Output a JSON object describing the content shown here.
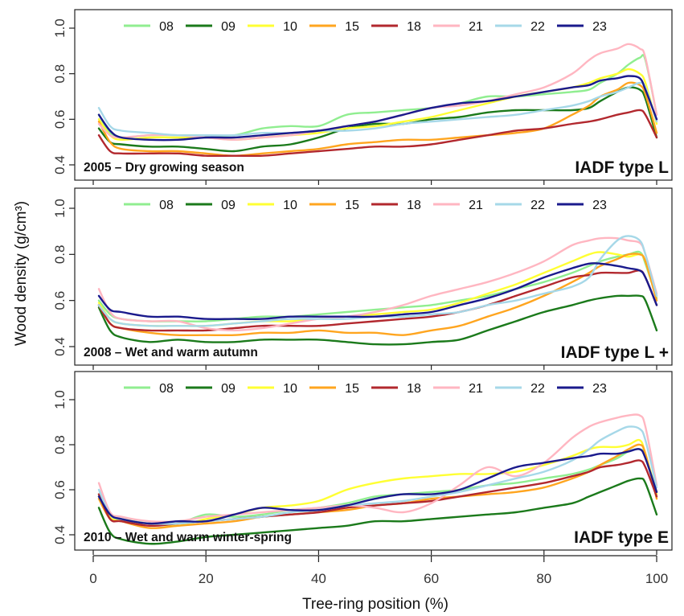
{
  "figure": {
    "ylabel": "Wood density (g/cm³)",
    "xlabel": "Tree-ring position (%)"
  },
  "chart_data": [
    {
      "type": "line",
      "panel_label": "2005 – Dry growing season",
      "type_label": "IADF type L",
      "xlim": [
        0,
        100
      ],
      "ylim": [
        0.4,
        1.0
      ],
      "yticks": [
        0.4,
        0.6,
        0.8,
        1.0
      ],
      "xticks": [
        0,
        20,
        40,
        60,
        80,
        100
      ],
      "legend_position": "top",
      "x": [
        1,
        3,
        5,
        10,
        15,
        20,
        25,
        30,
        35,
        40,
        45,
        50,
        55,
        60,
        65,
        70,
        75,
        80,
        85,
        88,
        90,
        93,
        95,
        97,
        98,
        100
      ],
      "series": [
        {
          "name": "08",
          "color": "#90ee90",
          "values": [
            0.62,
            0.54,
            0.52,
            0.53,
            0.53,
            0.53,
            0.53,
            0.56,
            0.57,
            0.57,
            0.62,
            0.63,
            0.64,
            0.65,
            0.67,
            0.7,
            0.7,
            0.71,
            0.72,
            0.73,
            0.76,
            0.8,
            0.84,
            0.87,
            0.86,
            0.62
          ]
        },
        {
          "name": "09",
          "color": "#1b7a1b",
          "values": [
            0.56,
            0.5,
            0.49,
            0.48,
            0.48,
            0.47,
            0.46,
            0.48,
            0.49,
            0.52,
            0.56,
            0.58,
            0.58,
            0.6,
            0.61,
            0.63,
            0.64,
            0.64,
            0.64,
            0.65,
            0.68,
            0.72,
            0.74,
            0.73,
            0.69,
            0.52
          ]
        },
        {
          "name": "10",
          "color": "#ffff33",
          "values": [
            0.6,
            0.53,
            0.51,
            0.52,
            0.52,
            0.52,
            0.51,
            0.52,
            0.53,
            0.54,
            0.56,
            0.57,
            0.59,
            0.61,
            0.64,
            0.67,
            0.7,
            0.72,
            0.74,
            0.76,
            0.78,
            0.8,
            0.82,
            0.8,
            0.76,
            0.58
          ]
        },
        {
          "name": "15",
          "color": "#ffa51f",
          "values": [
            0.59,
            0.5,
            0.47,
            0.46,
            0.46,
            0.45,
            0.44,
            0.45,
            0.46,
            0.47,
            0.49,
            0.5,
            0.51,
            0.51,
            0.52,
            0.53,
            0.54,
            0.56,
            0.62,
            0.66,
            0.7,
            0.73,
            0.76,
            0.75,
            0.71,
            0.54
          ]
        },
        {
          "name": "18",
          "color": "#b2282e",
          "values": [
            0.53,
            0.46,
            0.45,
            0.45,
            0.45,
            0.44,
            0.44,
            0.44,
            0.45,
            0.46,
            0.47,
            0.48,
            0.48,
            0.49,
            0.51,
            0.53,
            0.55,
            0.56,
            0.58,
            0.59,
            0.6,
            0.62,
            0.63,
            0.64,
            0.62,
            0.52
          ]
        },
        {
          "name": "21",
          "color": "#ffb6c1",
          "values": [
            0.58,
            0.53,
            0.52,
            0.53,
            0.53,
            0.52,
            0.51,
            0.52,
            0.53,
            0.55,
            0.57,
            0.59,
            0.62,
            0.65,
            0.66,
            0.68,
            0.71,
            0.74,
            0.8,
            0.86,
            0.89,
            0.91,
            0.93,
            0.91,
            0.87,
            0.62
          ]
        },
        {
          "name": "22",
          "color": "#a6d8e8",
          "values": [
            0.65,
            0.57,
            0.55,
            0.54,
            0.53,
            0.53,
            0.53,
            0.54,
            0.54,
            0.55,
            0.55,
            0.56,
            0.58,
            0.59,
            0.6,
            0.61,
            0.62,
            0.64,
            0.66,
            0.68,
            0.7,
            0.72,
            0.74,
            0.76,
            0.74,
            0.59
          ]
        },
        {
          "name": "23",
          "color": "#1a1a8c",
          "values": [
            0.62,
            0.55,
            0.52,
            0.51,
            0.51,
            0.52,
            0.52,
            0.53,
            0.54,
            0.55,
            0.57,
            0.59,
            0.62,
            0.65,
            0.67,
            0.68,
            0.7,
            0.72,
            0.74,
            0.75,
            0.77,
            0.78,
            0.79,
            0.78,
            0.73,
            0.6
          ]
        }
      ]
    },
    {
      "type": "line",
      "panel_label": "2008 – Wet and warm autumn",
      "type_label": "IADF type L +",
      "xlim": [
        0,
        100
      ],
      "ylim": [
        0.4,
        1.0
      ],
      "yticks": [
        0.4,
        0.6,
        0.8,
        1.0
      ],
      "xticks": [
        0,
        20,
        40,
        60,
        80,
        100
      ],
      "legend_position": "top",
      "x": [
        1,
        3,
        5,
        10,
        15,
        20,
        25,
        30,
        35,
        40,
        45,
        50,
        55,
        60,
        65,
        70,
        75,
        80,
        85,
        88,
        90,
        93,
        95,
        97,
        98,
        100
      ],
      "series": [
        {
          "name": "08",
          "color": "#90ee90",
          "values": [
            0.6,
            0.54,
            0.52,
            0.51,
            0.51,
            0.51,
            0.52,
            0.53,
            0.53,
            0.54,
            0.55,
            0.56,
            0.57,
            0.58,
            0.6,
            0.62,
            0.65,
            0.68,
            0.72,
            0.75,
            0.77,
            0.79,
            0.8,
            0.81,
            0.76,
            0.61
          ]
        },
        {
          "name": "09",
          "color": "#1b7a1b",
          "values": [
            0.57,
            0.47,
            0.44,
            0.42,
            0.43,
            0.42,
            0.42,
            0.43,
            0.43,
            0.43,
            0.42,
            0.41,
            0.41,
            0.42,
            0.43,
            0.47,
            0.51,
            0.55,
            0.58,
            0.6,
            0.61,
            0.62,
            0.62,
            0.62,
            0.6,
            0.47
          ]
        },
        {
          "name": "10",
          "color": "#ffff33",
          "values": [
            0.59,
            0.52,
            0.5,
            0.49,
            0.49,
            0.49,
            0.5,
            0.51,
            0.51,
            0.52,
            0.53,
            0.54,
            0.55,
            0.56,
            0.59,
            0.63,
            0.67,
            0.72,
            0.77,
            0.8,
            0.81,
            0.8,
            0.79,
            0.8,
            0.77,
            0.62
          ]
        },
        {
          "name": "15",
          "color": "#ffa51f",
          "values": [
            0.58,
            0.5,
            0.48,
            0.46,
            0.45,
            0.45,
            0.45,
            0.46,
            0.46,
            0.47,
            0.46,
            0.46,
            0.45,
            0.47,
            0.49,
            0.53,
            0.57,
            0.62,
            0.68,
            0.72,
            0.75,
            0.78,
            0.8,
            0.8,
            0.77,
            0.6
          ]
        },
        {
          "name": "18",
          "color": "#b2282e",
          "values": [
            0.58,
            0.5,
            0.48,
            0.47,
            0.47,
            0.47,
            0.48,
            0.49,
            0.49,
            0.49,
            0.5,
            0.51,
            0.52,
            0.53,
            0.55,
            0.58,
            0.62,
            0.66,
            0.7,
            0.71,
            0.72,
            0.72,
            0.72,
            0.73,
            0.7,
            0.58
          ]
        },
        {
          "name": "21",
          "color": "#ffb6c1",
          "values": [
            0.65,
            0.55,
            0.52,
            0.51,
            0.51,
            0.48,
            0.47,
            0.48,
            0.5,
            0.52,
            0.53,
            0.55,
            0.58,
            0.62,
            0.65,
            0.68,
            0.72,
            0.77,
            0.84,
            0.86,
            0.87,
            0.87,
            0.86,
            0.85,
            0.8,
            0.63
          ]
        },
        {
          "name": "22",
          "color": "#a6d8e8",
          "values": [
            0.58,
            0.52,
            0.5,
            0.49,
            0.49,
            0.49,
            0.5,
            0.51,
            0.52,
            0.52,
            0.52,
            0.53,
            0.53,
            0.54,
            0.55,
            0.58,
            0.6,
            0.63,
            0.66,
            0.7,
            0.78,
            0.86,
            0.88,
            0.86,
            0.8,
            0.62
          ]
        },
        {
          "name": "23",
          "color": "#1a1a8c",
          "values": [
            0.62,
            0.56,
            0.55,
            0.53,
            0.53,
            0.52,
            0.52,
            0.52,
            0.53,
            0.53,
            0.53,
            0.53,
            0.54,
            0.55,
            0.58,
            0.61,
            0.65,
            0.7,
            0.74,
            0.76,
            0.76,
            0.75,
            0.74,
            0.73,
            0.7,
            0.58
          ]
        }
      ]
    },
    {
      "type": "line",
      "panel_label": "2010 – Wet and warm winter-spring",
      "type_label": "IADF type E",
      "xlim": [
        0,
        100
      ],
      "ylim": [
        0.4,
        1.0
      ],
      "yticks": [
        0.4,
        0.6,
        0.8,
        1.0
      ],
      "xticks": [
        0,
        20,
        40,
        60,
        80,
        100
      ],
      "legend_position": "top",
      "x": [
        1,
        3,
        5,
        10,
        15,
        20,
        25,
        30,
        35,
        40,
        45,
        50,
        55,
        60,
        65,
        70,
        75,
        80,
        85,
        88,
        90,
        93,
        95,
        97,
        98,
        100
      ],
      "series": [
        {
          "name": "08",
          "color": "#90ee90",
          "values": [
            0.58,
            0.48,
            0.47,
            0.45,
            0.45,
            0.49,
            0.48,
            0.49,
            0.51,
            0.52,
            0.54,
            0.57,
            0.58,
            0.59,
            0.6,
            0.62,
            0.63,
            0.65,
            0.67,
            0.69,
            0.71,
            0.74,
            0.77,
            0.78,
            0.75,
            0.59
          ]
        },
        {
          "name": "09",
          "color": "#1b7a1b",
          "values": [
            0.52,
            0.41,
            0.38,
            0.36,
            0.37,
            0.39,
            0.4,
            0.41,
            0.42,
            0.43,
            0.44,
            0.46,
            0.46,
            0.47,
            0.48,
            0.49,
            0.5,
            0.52,
            0.54,
            0.57,
            0.59,
            0.62,
            0.64,
            0.65,
            0.63,
            0.49
          ]
        },
        {
          "name": "10",
          "color": "#ffff33",
          "values": [
            0.57,
            0.48,
            0.46,
            0.45,
            0.44,
            0.47,
            0.49,
            0.52,
            0.53,
            0.55,
            0.6,
            0.63,
            0.65,
            0.66,
            0.67,
            0.67,
            0.68,
            0.71,
            0.75,
            0.78,
            0.79,
            0.79,
            0.8,
            0.82,
            0.76,
            0.58
          ]
        },
        {
          "name": "15",
          "color": "#ffa51f",
          "values": [
            0.56,
            0.47,
            0.46,
            0.43,
            0.44,
            0.45,
            0.46,
            0.48,
            0.49,
            0.5,
            0.51,
            0.53,
            0.54,
            0.56,
            0.57,
            0.58,
            0.59,
            0.61,
            0.65,
            0.68,
            0.71,
            0.75,
            0.78,
            0.8,
            0.76,
            0.56
          ]
        },
        {
          "name": "18",
          "color": "#b2282e",
          "values": [
            0.58,
            0.47,
            0.46,
            0.44,
            0.45,
            0.46,
            0.47,
            0.48,
            0.49,
            0.5,
            0.52,
            0.53,
            0.54,
            0.55,
            0.57,
            0.59,
            0.61,
            0.63,
            0.66,
            0.68,
            0.7,
            0.71,
            0.72,
            0.73,
            0.7,
            0.57
          ]
        },
        {
          "name": "21",
          "color": "#ffb6c1",
          "values": [
            0.63,
            0.5,
            0.48,
            0.46,
            0.46,
            0.48,
            0.49,
            0.5,
            0.51,
            0.52,
            0.53,
            0.52,
            0.5,
            0.54,
            0.62,
            0.7,
            0.66,
            0.72,
            0.83,
            0.88,
            0.9,
            0.92,
            0.93,
            0.93,
            0.88,
            0.62
          ]
        },
        {
          "name": "22",
          "color": "#a6d8e8",
          "values": [
            0.6,
            0.49,
            0.47,
            0.45,
            0.45,
            0.46,
            0.47,
            0.48,
            0.5,
            0.51,
            0.53,
            0.54,
            0.55,
            0.57,
            0.59,
            0.62,
            0.65,
            0.68,
            0.73,
            0.78,
            0.82,
            0.86,
            0.88,
            0.87,
            0.82,
            0.61
          ]
        },
        {
          "name": "23",
          "color": "#1a1a8c",
          "values": [
            0.57,
            0.49,
            0.47,
            0.45,
            0.46,
            0.46,
            0.49,
            0.52,
            0.51,
            0.51,
            0.53,
            0.56,
            0.58,
            0.58,
            0.6,
            0.65,
            0.7,
            0.72,
            0.74,
            0.75,
            0.76,
            0.76,
            0.77,
            0.78,
            0.74,
            0.59
          ]
        }
      ]
    }
  ]
}
